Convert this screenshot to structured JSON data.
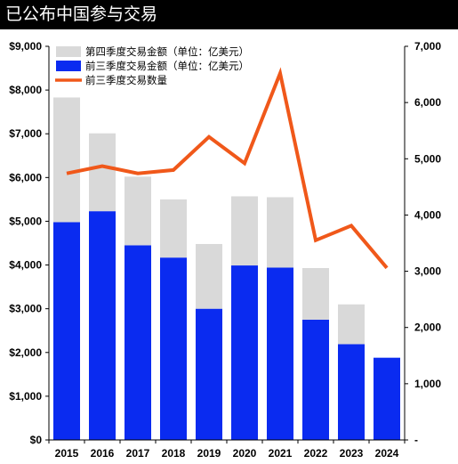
{
  "header": {
    "title": "已公布中国参与交易"
  },
  "chart_data": {
    "type": "bar",
    "categories": [
      "2015",
      "2016",
      "2017",
      "2018",
      "2019",
      "2020",
      "2021",
      "2022",
      "2023",
      "2024"
    ],
    "stacked": true,
    "series": [
      {
        "name": "前三季度交易金额（单位：亿美元）",
        "type": "bar",
        "axis": "left",
        "color": "#0a2bf0",
        "values": [
          4980,
          5230,
          4450,
          4170,
          3000,
          3990,
          3940,
          2750,
          2190,
          1880
        ]
      },
      {
        "name": "第四季度交易金额（单位：亿美元）",
        "type": "bar",
        "axis": "left",
        "color": "#d9d9d9",
        "values": [
          2850,
          1780,
          1570,
          1330,
          1480,
          1580,
          1610,
          1180,
          910,
          0
        ]
      },
      {
        "name": "前三季度交易数量",
        "type": "line",
        "axis": "right",
        "color": "#f0581a",
        "values": [
          4740,
          4870,
          4740,
          4800,
          5390,
          4920,
          6520,
          3550,
          3810,
          3060
        ]
      }
    ],
    "left_axis": {
      "min": 0,
      "max": 9000,
      "tick_values": [
        0,
        1000,
        2000,
        3000,
        4000,
        5000,
        6000,
        7000,
        8000,
        9000
      ],
      "tick_labels": [
        "$0",
        "$1,000",
        "$2,000",
        "$3,000",
        "$4,000",
        "$5,000",
        "$6,000",
        "$7,000",
        "$8,000",
        "$9,000"
      ]
    },
    "right_axis": {
      "min": 0,
      "max": 7000,
      "tick_values": [
        0,
        1000,
        2000,
        3000,
        4000,
        5000,
        6000,
        7000
      ],
      "tick_labels": [
        "-",
        "1,000",
        "2,000",
        "3,000",
        "4,000",
        "5,000",
        "6,000",
        "7,000"
      ]
    },
    "grid": false,
    "legend_position": "top-left"
  }
}
